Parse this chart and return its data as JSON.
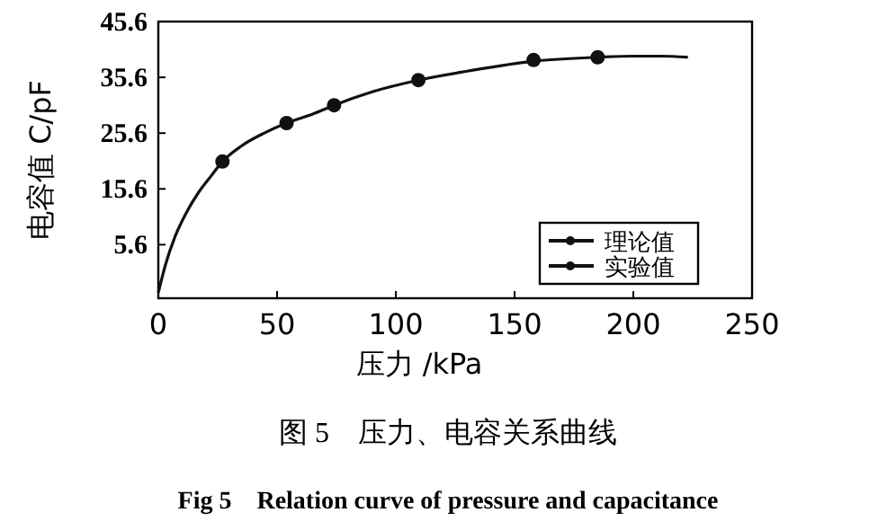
{
  "chart_data": {
    "type": "line",
    "title": "图 5　压力、电容关系曲线",
    "subtitle": "Fig 5　Relation curve of pressure and capacitance",
    "xlabel": "压力 /kPa",
    "ylabel": "电容值 C/pF",
    "xlim": [
      0,
      250
    ],
    "xticks": [
      0,
      50,
      100,
      150,
      200,
      250
    ],
    "ylim": [
      -4,
      45.6
    ],
    "yticks": [
      5.6,
      15.6,
      25.6,
      35.6,
      45.6
    ],
    "grid": false,
    "legend": "bottom right",
    "series": [
      {
        "name": "理论值",
        "type": "line",
        "color": "#111111",
        "marker": "none",
        "x": [
          0,
          3,
          7,
          12,
          17,
          22,
          27,
          35,
          45,
          54,
          65,
          74,
          90,
          109.5,
          130,
          158,
          185,
          200,
          212,
          223
        ],
        "values": [
          -3,
          2,
          7,
          11.5,
          15,
          17.8,
          20.5,
          23.3,
          25.7,
          27.4,
          29,
          30.6,
          33,
          35.1,
          36.7,
          38.5,
          39.2,
          39.4,
          39.4,
          39.2
        ]
      },
      {
        "name": "实验值",
        "type": "scatter",
        "color": "#111111",
        "marker": "circle",
        "x": [
          27,
          54,
          74,
          109.5,
          158,
          185
        ],
        "values": [
          20.5,
          27.4,
          30.6,
          35.1,
          38.7,
          39.2
        ]
      }
    ]
  }
}
